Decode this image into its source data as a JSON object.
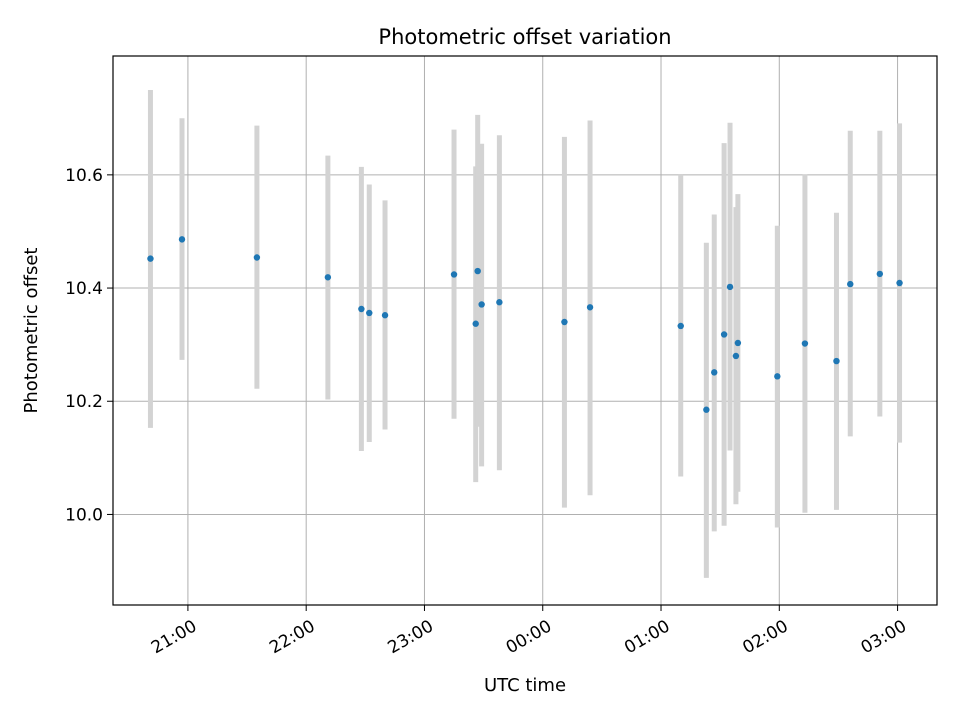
{
  "chart_data": {
    "type": "scatter",
    "title": "Photometric offset variation",
    "xlabel": "UTC time",
    "ylabel": "Photometric offset",
    "x_format": "HH:MM",
    "x_range": [
      "20:22",
      "03:20"
    ],
    "ylim": [
      9.84,
      10.81
    ],
    "grid": true,
    "marker_color": "#1f77b4",
    "errorbar_color": "#d3d3d3",
    "x_ticks": [
      "21:00",
      "22:00",
      "23:00",
      "00:00",
      "01:00",
      "02:00",
      "03:00"
    ],
    "y_ticks": [
      10.0,
      10.2,
      10.4,
      10.6
    ],
    "y_tick_labels": [
      "10.0",
      "10.2",
      "10.4",
      "10.6"
    ],
    "points": [
      {
        "t": "20:41",
        "y": 10.452,
        "lo": 10.153,
        "hi": 10.75
      },
      {
        "t": "20:57",
        "y": 10.486,
        "lo": 10.273,
        "hi": 10.7
      },
      {
        "t": "21:35",
        "y": 10.454,
        "lo": 10.222,
        "hi": 10.687
      },
      {
        "t": "22:11",
        "y": 10.419,
        "lo": 10.203,
        "hi": 10.634
      },
      {
        "t": "22:28",
        "y": 10.363,
        "lo": 10.112,
        "hi": 10.614
      },
      {
        "t": "22:32",
        "y": 10.356,
        "lo": 10.128,
        "hi": 10.583
      },
      {
        "t": "22:40",
        "y": 10.352,
        "lo": 10.15,
        "hi": 10.555
      },
      {
        "t": "23:15",
        "y": 10.424,
        "lo": 10.169,
        "hi": 10.68
      },
      {
        "t": "23:26",
        "y": 10.337,
        "lo": 10.057,
        "hi": 10.615
      },
      {
        "t": "23:27",
        "y": 10.43,
        "lo": 10.155,
        "hi": 10.706
      },
      {
        "t": "23:29",
        "y": 10.371,
        "lo": 10.085,
        "hi": 10.655
      },
      {
        "t": "23:38",
        "y": 10.375,
        "lo": 10.078,
        "hi": 10.67
      },
      {
        "t": "00:11",
        "y": 10.34,
        "lo": 10.012,
        "hi": 10.667
      },
      {
        "t": "00:24",
        "y": 10.366,
        "lo": 10.034,
        "hi": 10.696
      },
      {
        "t": "01:10",
        "y": 10.333,
        "lo": 10.067,
        "hi": 10.6
      },
      {
        "t": "01:23",
        "y": 10.185,
        "lo": 9.888,
        "hi": 10.48
      },
      {
        "t": "01:27",
        "y": 10.251,
        "lo": 9.97,
        "hi": 10.53
      },
      {
        "t": "01:32",
        "y": 10.318,
        "lo": 9.98,
        "hi": 10.656
      },
      {
        "t": "01:35",
        "y": 10.402,
        "lo": 10.113,
        "hi": 10.692
      },
      {
        "t": "01:38",
        "y": 10.28,
        "lo": 10.018,
        "hi": 10.543
      },
      {
        "t": "01:39",
        "y": 10.303,
        "lo": 10.04,
        "hi": 10.566
      },
      {
        "t": "01:59",
        "y": 10.244,
        "lo": 9.977,
        "hi": 10.51
      },
      {
        "t": "02:13",
        "y": 10.302,
        "lo": 10.003,
        "hi": 10.601
      },
      {
        "t": "02:29",
        "y": 10.271,
        "lo": 10.008,
        "hi": 10.533
      },
      {
        "t": "02:36",
        "y": 10.407,
        "lo": 10.138,
        "hi": 10.678
      },
      {
        "t": "02:51",
        "y": 10.425,
        "lo": 10.173,
        "hi": 10.678
      },
      {
        "t": "03:01",
        "y": 10.409,
        "lo": 10.127,
        "hi": 10.691
      }
    ]
  }
}
